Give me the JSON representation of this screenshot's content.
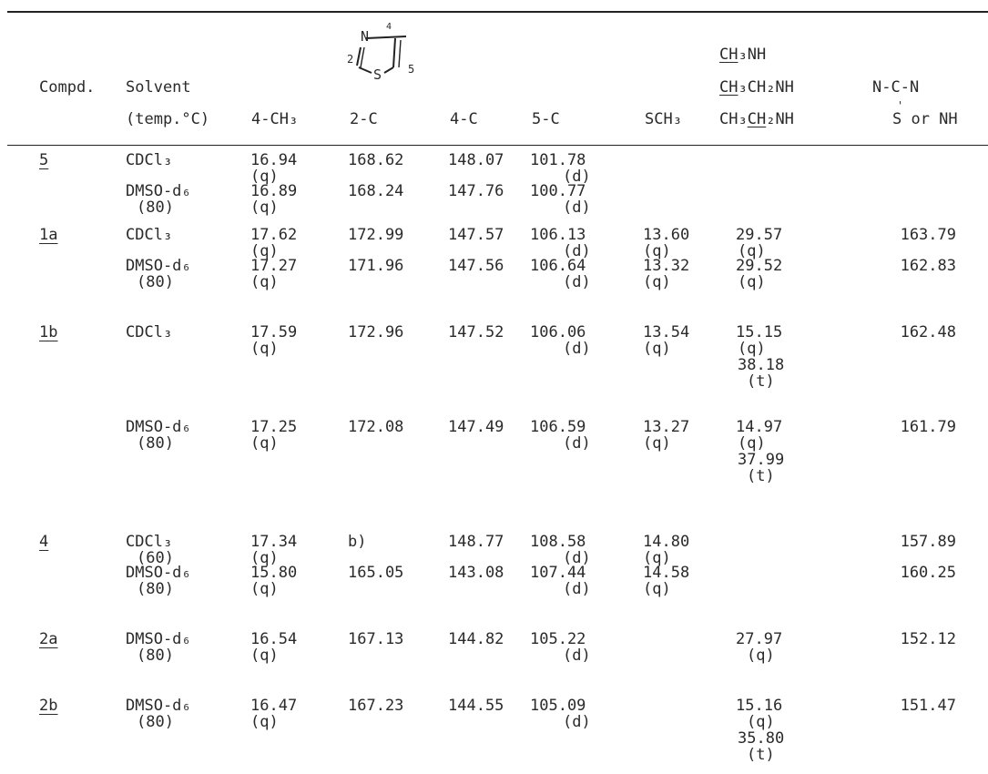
{
  "header": {
    "compd": "Compd.",
    "solvent": "Solvent",
    "temp": "(temp.°C)",
    "c4ch3": "4-CH₃",
    "c2c": "2-C",
    "c4c": "4-C",
    "c5c": "5-C",
    "sch3": "SCH₃",
    "amine_1_ul": "CH",
    "amine_1_rest": "₃NH",
    "amine_2_ul": "CH",
    "amine_2_rest": "₃CH₂NH",
    "amine_3_pre": "CH₃",
    "amine_3_ul": "CH",
    "amine_3_rest": "₂NH",
    "ncn": "N-C-N",
    "ncn_sub": "S or NH",
    "ncn_tick": "'",
    "thiazole_N": "N",
    "thiazole_S": "S",
    "thiazole_2": "2",
    "thiazole_4": "4",
    "thiazole_5": "5"
  },
  "rows": [
    {
      "id": "5",
      "cells": {
        "s1": "CDCl₃",
        "v1": [
          "16.94",
          "168.62",
          "148.07",
          "101.78"
        ],
        "m1": [
          "(q)",
          "(d)"
        ],
        "s2": "DMSO-d₆",
        "t2": "(80)",
        "v2": [
          "16.89",
          "168.24",
          "147.76",
          "100.77"
        ],
        "m2": [
          "(q)",
          "(d)"
        ]
      }
    },
    {
      "id": "1a",
      "cells": {
        "s1": "CDCl₃",
        "v1": [
          "17.62",
          "172.99",
          "147.57",
          "106.13",
          "13.60",
          "29.57",
          "163.79"
        ],
        "m1": [
          "(q)",
          "(d)",
          "(q)",
          "(q)"
        ],
        "s2": "DMSO-d₆",
        "t2": "(80)",
        "v2": [
          "17.27",
          "171.96",
          "147.56",
          "106.64",
          "13.32",
          "29.52",
          "162.83"
        ],
        "m2": [
          "(q)",
          "(d)",
          "(q)",
          "(q)"
        ]
      }
    },
    {
      "id": "1b",
      "cells": {
        "s1": "CDCl₃",
        "v1": [
          "17.59",
          "172.96",
          "147.52",
          "106.06",
          "13.54",
          "15.15",
          "162.48"
        ],
        "m1": [
          "(q)",
          "(d)",
          "(q)",
          "(q)"
        ],
        "x1": [
          "38.18",
          "(t)"
        ],
        "s2": "DMSO-d₆",
        "t2": "(80)",
        "v2": [
          "17.25",
          "172.08",
          "147.49",
          "106.59",
          "13.27",
          "14.97",
          "161.79"
        ],
        "m2": [
          "(q)",
          "(d)",
          "(q)",
          "(q)"
        ],
        "x2": [
          "37.99",
          "(t)"
        ]
      }
    },
    {
      "id": "4",
      "cells": {
        "s1": "CDCl₃",
        "t1": "(60)",
        "v1": [
          "17.34",
          "b)",
          "148.77",
          "108.58",
          "14.80",
          "157.89"
        ],
        "m1": [
          "(q)",
          "(d)",
          "(q)"
        ],
        "s2": "DMSO-d₆",
        "t2": "(80)",
        "v2": [
          "15.80",
          "165.05",
          "143.08",
          "107.44",
          "14.58",
          "160.25"
        ],
        "m2": [
          "(q)",
          "(d)",
          "(q)"
        ]
      }
    },
    {
      "id": "2a",
      "cells": {
        "s1": "DMSO-d₆",
        "t1": "(80)",
        "v1": [
          "16.54",
          "167.13",
          "144.82",
          "105.22",
          "27.97",
          "152.12"
        ],
        "m1": [
          "(q)",
          "(d)",
          "(q)"
        ]
      }
    },
    {
      "id": "2b",
      "cells": {
        "s1": "DMSO-d₆",
        "t1": "(80)",
        "v1": [
          "16.47",
          "167.23",
          "144.55",
          "105.09",
          "15.16",
          "151.47"
        ],
        "m1": [
          "(q)",
          "(d)",
          "(q)"
        ],
        "x1": [
          "35.80",
          "(t)"
        ]
      }
    }
  ]
}
